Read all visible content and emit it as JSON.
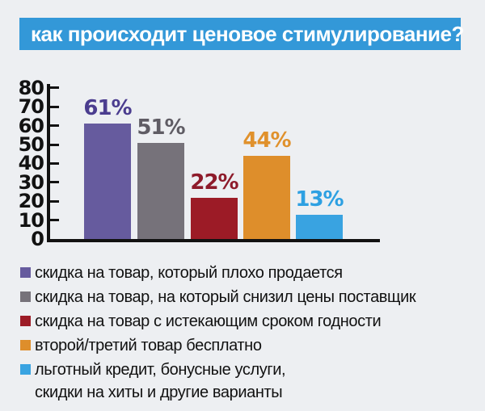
{
  "title": "как происходит ценовое стимулирование?",
  "colors": {
    "background": "#edeff2",
    "banner": "#3398d8",
    "axis": "#121212",
    "legend_text": "#111111"
  },
  "chart_data": {
    "type": "bar",
    "title": "как происходит ценовое стимулирование?",
    "categories": [
      "скидка на товар, который плохо продается",
      "скидка на товар, на который снизил цены поставщик",
      "скидка на товар с истекающим сроком годности",
      "второй/третий товар бесплатно",
      "льготный кредит, бонусные услуги, скидки на хиты и другие варианты"
    ],
    "values": [
      61,
      51,
      22,
      44,
      13
    ],
    "value_labels": [
      "61%",
      "51%",
      "22%",
      "44%",
      "13%"
    ],
    "bar_colors": [
      "#665b9e",
      "#76727a",
      "#9c1b26",
      "#de8e2b",
      "#39a3e1"
    ],
    "value_label_colors": [
      "#4b3d8f",
      "#5f5c64",
      "#8e1b2b",
      "#e0912c",
      "#2da0e2"
    ],
    "xlabel": "",
    "ylabel": "",
    "ylim": [
      0,
      80
    ],
    "yticks": [
      0,
      10,
      20,
      30,
      40,
      50,
      60,
      70,
      80
    ],
    "grid": false,
    "legend_position": "bottom"
  },
  "legend": {
    "items": [
      {
        "color": "#665b9e",
        "label": "скидка на товар, который плохо продается"
      },
      {
        "color": "#76727a",
        "label": "скидка на товар, на который снизил цены поставщик"
      },
      {
        "color": "#9c1b26",
        "label": "скидка на товар с истекающим сроком годности"
      },
      {
        "color": "#de8e2b",
        "label": "второй/третий товар бесплатно"
      },
      {
        "color": "#39a3e1",
        "label": "льготный кредит, бонусные услуги,\nскидки на хиты и другие варианты"
      }
    ]
  }
}
